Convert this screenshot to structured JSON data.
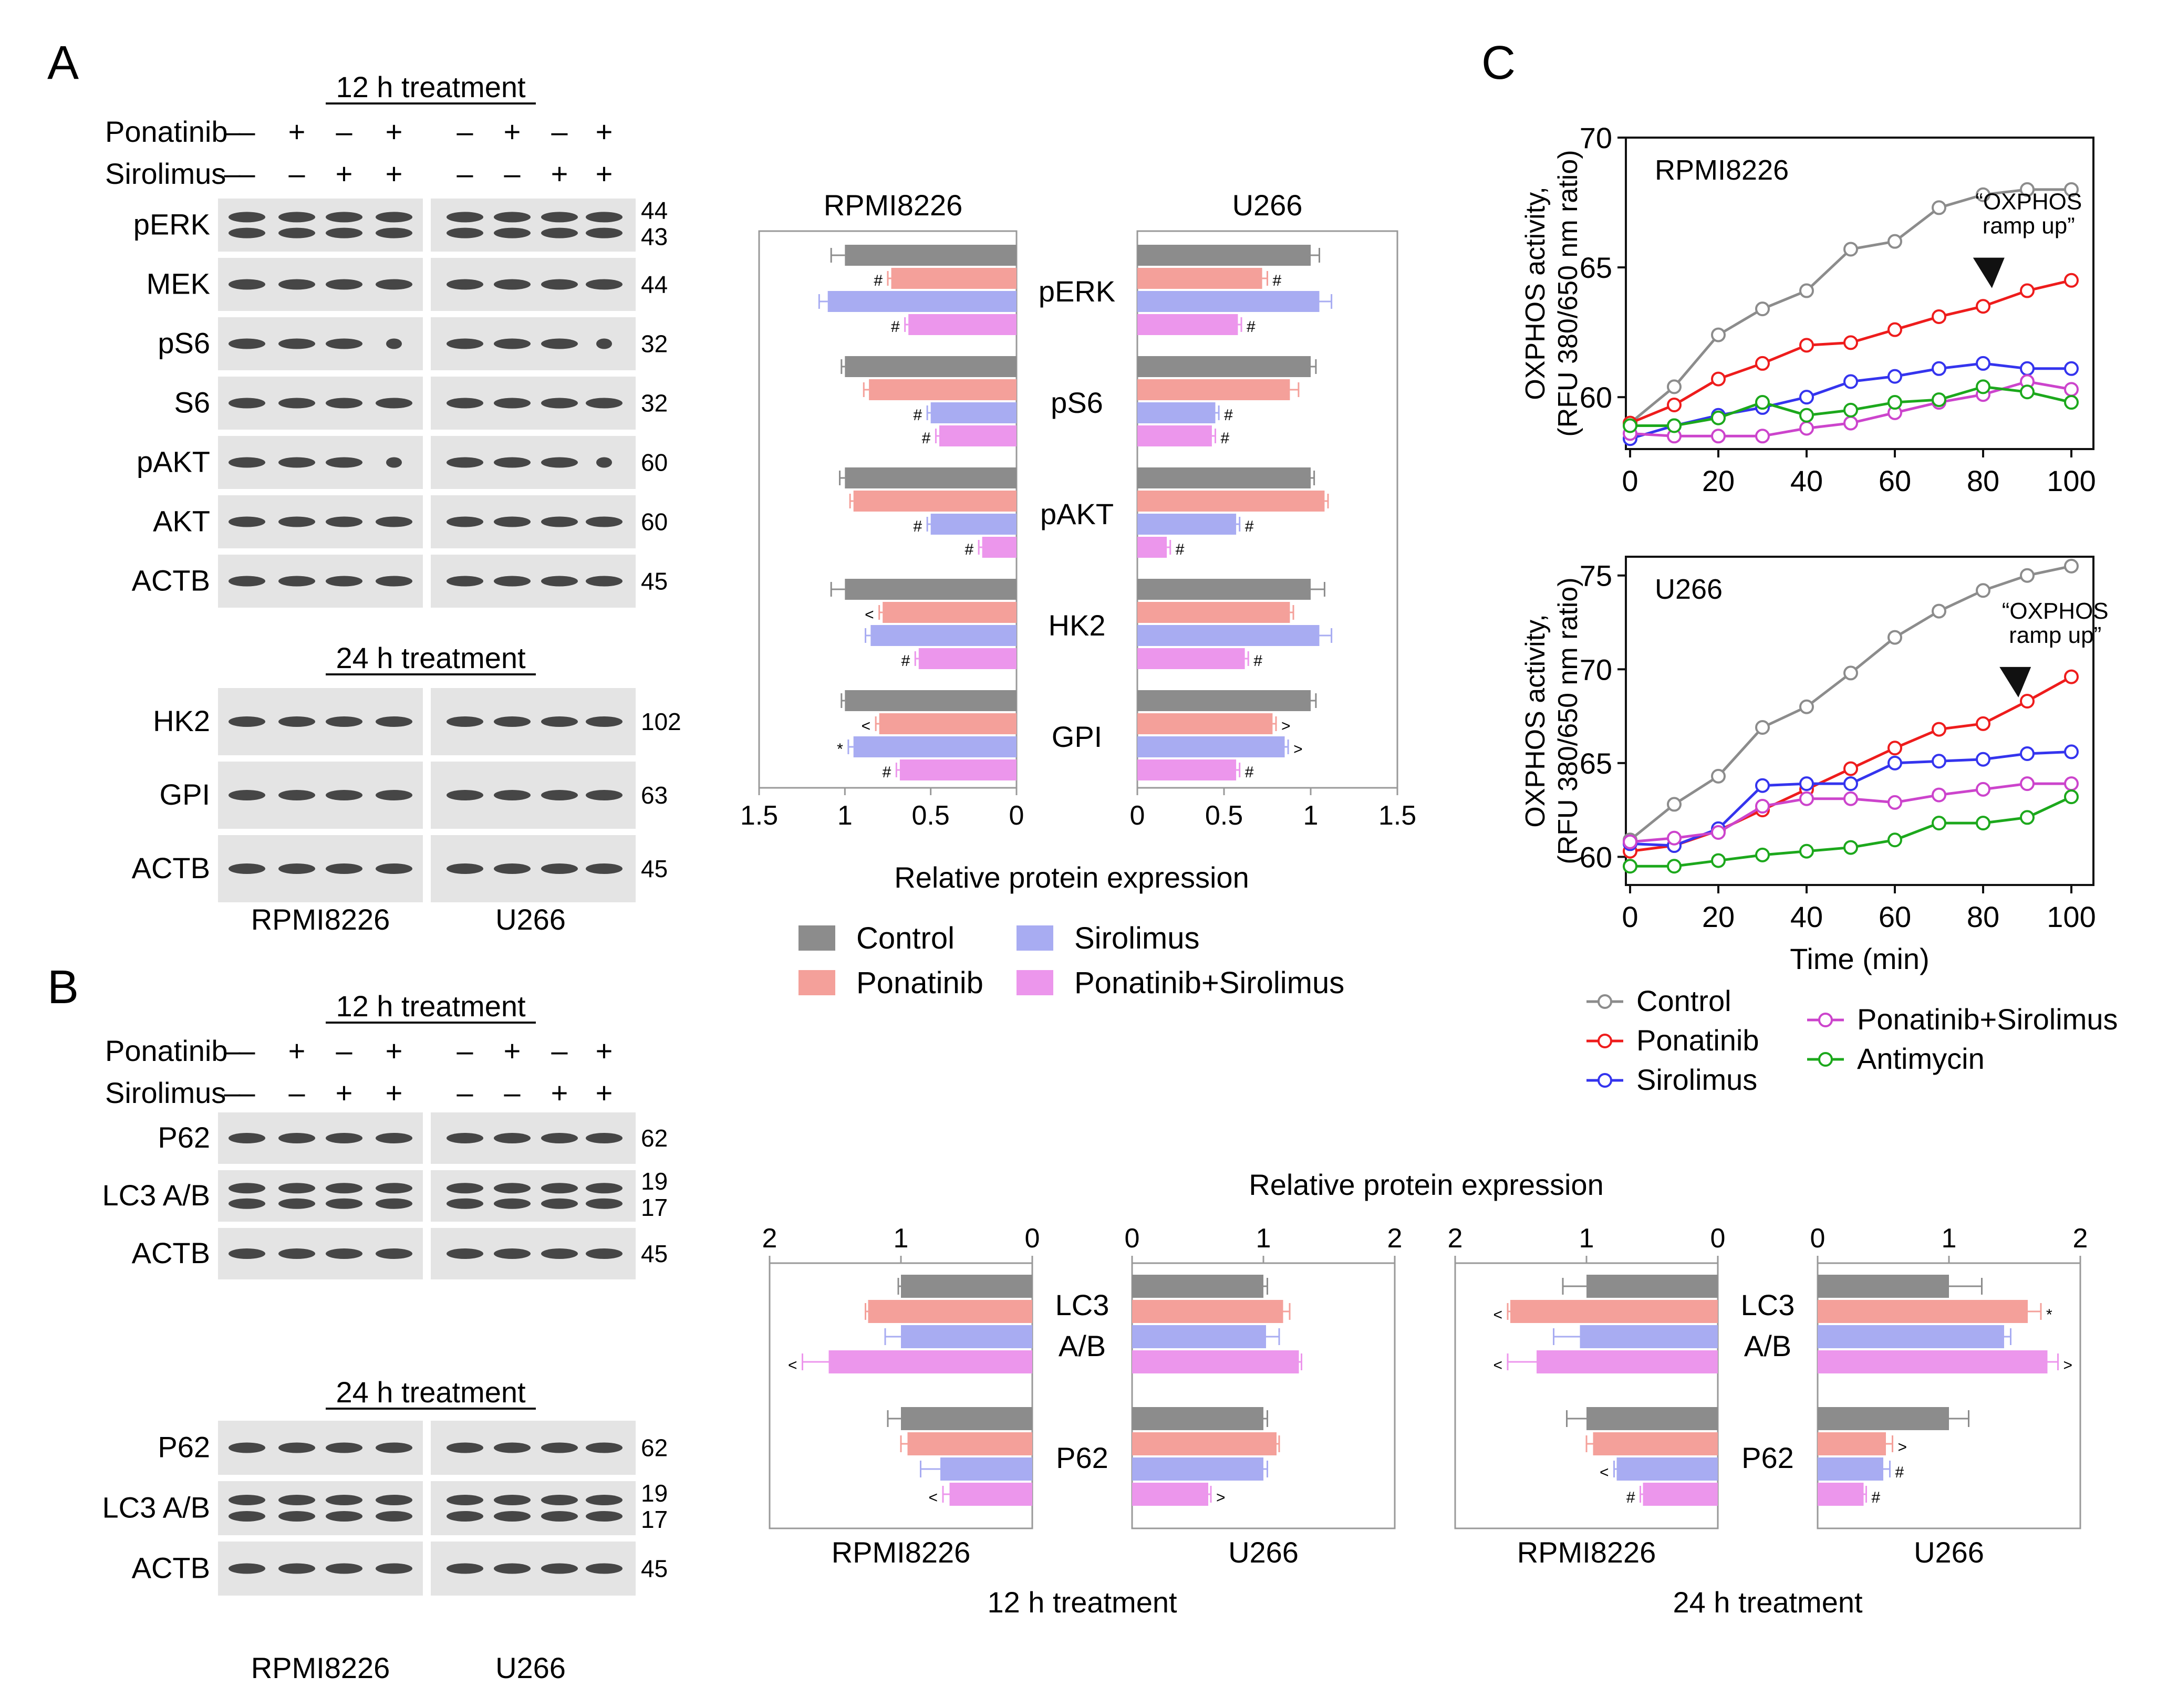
{
  "panels": {
    "a": "A",
    "b": "B",
    "c": "C"
  },
  "colors": {
    "control": "#8c8c8c",
    "ponatinib": "#f4a09a",
    "sirolimus": "#a8acf2",
    "combo": "#ec96ec",
    "line_control": "#8c8c8c",
    "line_ponatinib": "#ee1c1c",
    "line_sirolimus": "#3434ee",
    "line_combo": "#cc44cc",
    "line_antimycin": "#1ca81c"
  },
  "blotA": {
    "treatment12": "12 h treatment",
    "treatment24": "24 h treatment",
    "ponatinib_label": "Ponatinib",
    "sirolimus_label": "Sirolimus",
    "ponatinib_signs": [
      "–",
      "+",
      "–",
      "+",
      "–",
      "+",
      "–",
      "+"
    ],
    "sirolimus_signs": [
      "–",
      "–",
      "+",
      "+",
      "–",
      "–",
      "+",
      "+"
    ],
    "rows12": [
      {
        "label": "pERK",
        "mw": "44",
        "mw2": "43"
      },
      {
        "label": "MEK",
        "mw": "44"
      },
      {
        "label": "pS6",
        "mw": "32"
      },
      {
        "label": "S6",
        "mw": "32"
      },
      {
        "label": "pAKT",
        "mw": "60"
      },
      {
        "label": "AKT",
        "mw": "60"
      },
      {
        "label": "ACTB",
        "mw": "45"
      }
    ],
    "rows24": [
      {
        "label": "HK2",
        "mw": "102"
      },
      {
        "label": "GPI",
        "mw": "63"
      },
      {
        "label": "ACTB",
        "mw": "45"
      }
    ],
    "cell1": "RPMI8226",
    "cell2": "U266"
  },
  "blotB": {
    "treatment12": "12 h treatment",
    "treatment24": "24 h treatment",
    "ponatinib_label": "Ponatinib",
    "sirolimus_label": "Sirolimus",
    "ponatinib_signs": [
      "–",
      "+",
      "–",
      "+",
      "–",
      "+",
      "–",
      "+"
    ],
    "sirolimus_signs": [
      "–",
      "–",
      "+",
      "+",
      "–",
      "–",
      "+",
      "+"
    ],
    "rows12": [
      {
        "label": "P62",
        "mw": "62"
      },
      {
        "label": "LC3 A/B",
        "mw": "19",
        "mw2": "17"
      },
      {
        "label": "ACTB",
        "mw": "45"
      }
    ],
    "rows24": [
      {
        "label": "P62",
        "mw": "62"
      },
      {
        "label": "LC3 A/B",
        "mw": "19",
        "mw2": "17"
      },
      {
        "label": "ACTB",
        "mw": "45"
      }
    ],
    "cell1": "RPMI8226",
    "cell2": "U266"
  },
  "chart_data": [
    {
      "id": "A-bar",
      "type": "bar",
      "orientation": "horizontal-mirrored",
      "categories": [
        "pERK",
        "pS6",
        "pAKT",
        "HK2",
        "GPI"
      ],
      "left_title": "RPMI8226",
      "right_title": "U266",
      "xlabel": "Relative protein expression",
      "xlim": [
        0,
        1.5
      ],
      "ticks": [
        "1.5",
        "1",
        "0.5",
        "0",
        "0",
        "0.5",
        "1",
        "1.5"
      ],
      "series_names": [
        "Control",
        "Ponatinib",
        "Sirolimus",
        "Ponatinib+Sirolimus"
      ],
      "left": {
        "values": [
          [
            1.0,
            0.73,
            1.1,
            0.63
          ],
          [
            1.0,
            0.86,
            0.5,
            0.45
          ],
          [
            1.0,
            0.95,
            0.5,
            0.2
          ],
          [
            1.0,
            0.78,
            0.85,
            0.57
          ],
          [
            1.0,
            0.8,
            0.95,
            0.68
          ]
        ],
        "errors": [
          [
            0.08,
            0.02,
            0.05,
            0.02
          ],
          [
            0.02,
            0.03,
            0.02,
            0.02
          ],
          [
            0.03,
            0.02,
            0.02,
            0.02
          ],
          [
            0.08,
            0.02,
            0.03,
            0.02
          ],
          [
            0.02,
            0.02,
            0.03,
            0.02
          ]
        ],
        "marks": [
          [
            "",
            "#",
            "",
            "#"
          ],
          [
            "",
            "",
            "#",
            "#"
          ],
          [
            "",
            "",
            "#",
            "#"
          ],
          [
            "",
            "<",
            "",
            "#"
          ],
          [
            "",
            "<",
            "*",
            "#"
          ]
        ]
      },
      "right": {
        "values": [
          [
            1.0,
            0.72,
            1.05,
            0.58
          ],
          [
            1.0,
            0.88,
            0.45,
            0.43
          ],
          [
            1.0,
            1.08,
            0.57,
            0.17
          ],
          [
            1.0,
            0.88,
            1.05,
            0.62
          ],
          [
            1.0,
            0.78,
            0.85,
            0.57
          ]
        ],
        "errors": [
          [
            0.05,
            0.03,
            0.07,
            0.02
          ],
          [
            0.03,
            0.05,
            0.02,
            0.02
          ],
          [
            0.02,
            0.02,
            0.02,
            0.02
          ],
          [
            0.08,
            0.02,
            0.07,
            0.02
          ],
          [
            0.03,
            0.02,
            0.02,
            0.02
          ]
        ],
        "marks": [
          [
            "",
            "#",
            "",
            "#"
          ],
          [
            "",
            "",
            "#",
            "#"
          ],
          [
            "",
            "",
            "#",
            "#"
          ],
          [
            "",
            "",
            "",
            "#"
          ],
          [
            "",
            ">",
            ">",
            "#"
          ]
        ]
      }
    },
    {
      "id": "B-bar",
      "type": "bar",
      "orientation": "horizontal-mirrored",
      "title": "Relative protein expression",
      "categories": [
        "LC3\nA/B",
        "P62"
      ],
      "xlim": [
        0,
        2
      ],
      "ticks": [
        "2",
        "1",
        "0",
        "0",
        "1",
        "2"
      ],
      "series_names": [
        "Control",
        "Ponatinib",
        "Sirolimus",
        "Ponatinib+Sirolimus"
      ],
      "groups": [
        {
          "caption": "12 h treatment",
          "left_title": "RPMI8226",
          "right_title": "U266",
          "left": {
            "values": [
              [
                1.0,
                1.25,
                1.0,
                1.55
              ],
              [
                1.0,
                0.95,
                0.7,
                0.63
              ]
            ],
            "errors": [
              [
                0.02,
                0.02,
                0.12,
                0.2
              ],
              [
                0.1,
                0.05,
                0.15,
                0.05
              ]
            ],
            "marks": [
              [
                "",
                "",
                "",
                "<"
              ],
              [
                "",
                "",
                "",
                "<"
              ]
            ]
          },
          "right": {
            "values": [
              [
                1.0,
                1.15,
                1.02,
                1.27
              ],
              [
                1.0,
                1.1,
                1.0,
                0.58
              ]
            ],
            "errors": [
              [
                0.03,
                0.05,
                0.1,
                0.02
              ],
              [
                0.03,
                0.02,
                0.03,
                0.02
              ]
            ],
            "marks": [
              [
                "",
                "",
                "",
                ""
              ],
              [
                "",
                "",
                "",
                ">"
              ]
            ]
          }
        },
        {
          "caption": "24 h treatment",
          "left_title": "RPMI8226",
          "right_title": "U266",
          "left": {
            "values": [
              [
                1.0,
                1.58,
                1.05,
                1.38
              ],
              [
                1.0,
                0.95,
                0.77,
                0.57
              ]
            ],
            "errors": [
              [
                0.18,
                0.02,
                0.2,
                0.22
              ],
              [
                0.15,
                0.05,
                0.02,
                0.02
              ]
            ],
            "marks": [
              [
                "",
                "<",
                "",
                "<"
              ],
              [
                "",
                "",
                "<",
                "#"
              ]
            ]
          },
          "right": {
            "values": [
              [
                1.0,
                1.6,
                1.42,
                1.75
              ],
              [
                1.0,
                0.52,
                0.5,
                0.35
              ]
            ],
            "errors": [
              [
                0.25,
                0.1,
                0.05,
                0.08
              ],
              [
                0.15,
                0.05,
                0.05,
                0.02
              ]
            ],
            "marks": [
              [
                "",
                "*",
                "",
                ">"
              ],
              [
                "",
                ">",
                "#",
                "#"
              ]
            ]
          }
        }
      ]
    },
    {
      "id": "C-line",
      "type": "line",
      "x": [
        0,
        10,
        20,
        30,
        40,
        50,
        60,
        70,
        80,
        90,
        100
      ],
      "xlabel": "Time (min)",
      "ylabel": "OXPHOS activity,\n(RFU 380/650 nm ratio)",
      "annotation": "“OXPHOS\nramp up”",
      "plots": [
        {
          "label": "RPMI8226",
          "ylim": [
            58,
            70
          ],
          "yticks": [
            60,
            65,
            70
          ],
          "xticks": [
            0,
            20,
            40,
            60,
            80,
            100
          ],
          "arrow_at": [
            82,
            64.2
          ],
          "series": [
            {
              "name": "Control",
              "values": [
                59,
                60.4,
                62.4,
                63.4,
                64.1,
                65.7,
                66.0,
                67.3,
                67.8,
                68.0,
                68.0
              ]
            },
            {
              "name": "Ponatinib",
              "values": [
                59,
                59.7,
                60.7,
                61.3,
                62.0,
                62.1,
                62.6,
                63.1,
                63.5,
                64.1,
                64.5
              ]
            },
            {
              "name": "Sirolimus",
              "values": [
                58.4,
                58.9,
                59.3,
                59.6,
                60.0,
                60.6,
                60.8,
                61.1,
                61.3,
                61.1,
                61.1
              ]
            },
            {
              "name": "Ponatinib+Sirolimus",
              "values": [
                58.6,
                58.5,
                58.5,
                58.5,
                58.8,
                59.0,
                59.4,
                59.8,
                60.1,
                60.6,
                60.3
              ]
            },
            {
              "name": "Antimycin",
              "values": [
                58.9,
                58.9,
                59.2,
                59.8,
                59.3,
                59.5,
                59.8,
                59.9,
                60.4,
                60.2,
                59.8
              ]
            }
          ]
        },
        {
          "label": "U266",
          "ylim": [
            58.5,
            76
          ],
          "yticks": [
            60,
            65,
            70,
            75
          ],
          "xticks": [
            0,
            20,
            40,
            60,
            80,
            100
          ],
          "arrow_at": [
            88,
            68.5
          ],
          "series": [
            {
              "name": "Control",
              "values": [
                60.9,
                62.8,
                64.3,
                66.9,
                68.0,
                69.8,
                71.7,
                73.1,
                74.2,
                75.0,
                75.5
              ]
            },
            {
              "name": "Ponatinib",
              "values": [
                60.3,
                60.6,
                61.4,
                62.5,
                63.6,
                64.7,
                65.8,
                66.8,
                67.1,
                68.3,
                69.6
              ]
            },
            {
              "name": "Sirolimus",
              "values": [
                60.7,
                60.6,
                61.5,
                63.8,
                63.9,
                63.9,
                65.0,
                65.1,
                65.2,
                65.5,
                65.6
              ]
            },
            {
              "name": "Ponatinib+Sirolimus",
              "values": [
                60.8,
                61.0,
                61.3,
                62.7,
                63.1,
                63.1,
                62.9,
                63.3,
                63.6,
                63.9,
                63.9
              ]
            },
            {
              "name": "Antimycin",
              "values": [
                59.5,
                59.5,
                59.8,
                60.1,
                60.3,
                60.5,
                60.9,
                61.8,
                61.8,
                62.1,
                63.2
              ]
            }
          ]
        }
      ],
      "legend": [
        "Control",
        "Ponatinib",
        "Sirolimus",
        "Ponatinib+Sirolimus",
        "Antimycin"
      ]
    }
  ]
}
